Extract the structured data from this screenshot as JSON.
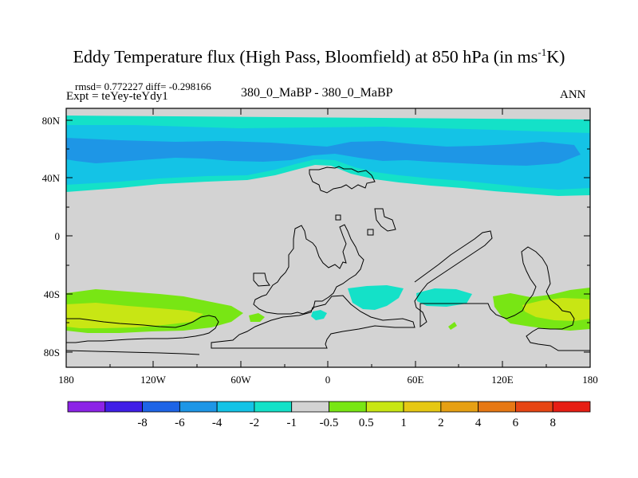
{
  "title_main": "Eddy Temperature flux (High Pass, Bloomfield) at 850 hPa (in ms",
  "title_sup": "-1",
  "title_end": "K)",
  "stats": "rmsd= 0.772227 diff= -0.298166",
  "expt": "Expt = teYey-teYdy1",
  "case_label": "380_0_MaBP - 380_0_MaBP",
  "season": "ANN",
  "y_ticks": [
    "80N",
    "40N",
    "0",
    "40S",
    "80S"
  ],
  "x_ticks": [
    "180",
    "120W",
    "60W",
    "0",
    "60E",
    "120E",
    "180"
  ],
  "colorbar": {
    "colors": [
      "#8c23e6",
      "#3f1ee6",
      "#1e64e6",
      "#1e96e6",
      "#14c3e6",
      "#14e1c8",
      "#d3d3d3",
      "#78e614",
      "#c8e614",
      "#e6c814",
      "#e6a014",
      "#e67814",
      "#e64614",
      "#e61e14"
    ],
    "labels": [
      "-8",
      "-6",
      "-4",
      "-2",
      "-1",
      "-0.5",
      "0.5",
      "1",
      "2",
      "4",
      "6",
      "8"
    ]
  }
}
